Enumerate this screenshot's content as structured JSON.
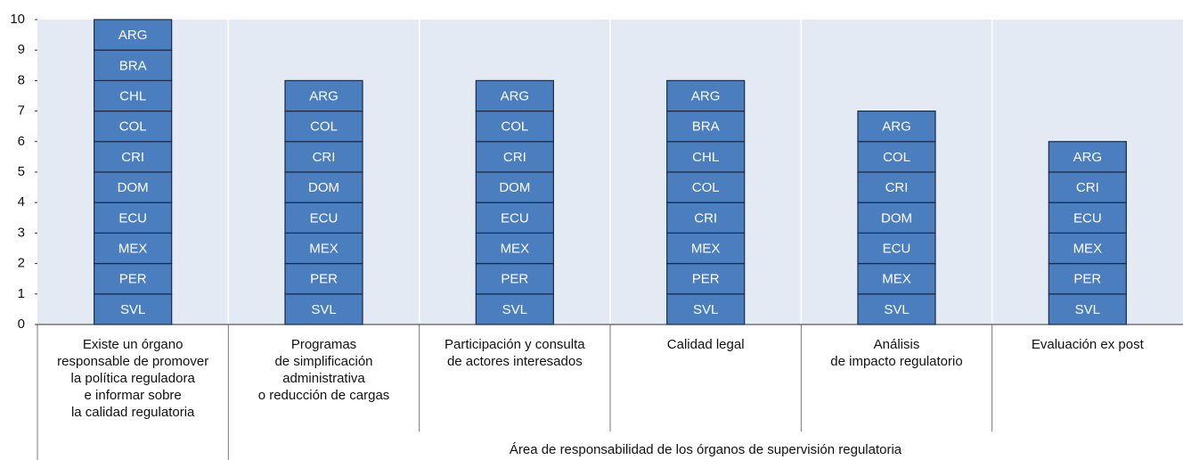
{
  "chart_data": {
    "type": "stacked-blocks",
    "xlabel": "Área de responsabilidad de los órganos de supervisión regulatoria",
    "ylim": [
      0,
      10
    ],
    "yticks": [
      0,
      1,
      2,
      3,
      4,
      5,
      6,
      7,
      8,
      9,
      10
    ],
    "color": "#4a7ebf",
    "categories": [
      {
        "lines": [
          "Existe un órgano",
          "responsable de promover",
          "la política reguladora",
          "e informar sobre",
          "la calidad regulatoria"
        ],
        "blocks": [
          {
            "label": "SVL",
            "value": 1
          },
          {
            "label": "PER",
            "value": 1
          },
          {
            "label": "MEX",
            "value": 1
          },
          {
            "label": "ECU",
            "value": 1
          },
          {
            "label": "DOM",
            "value": 1
          },
          {
            "label": "CRI",
            "value": 1
          },
          {
            "label": "COL",
            "value": 1
          },
          {
            "label": "CHL",
            "value": 1
          },
          {
            "label": "BRA",
            "value": 1
          },
          {
            "label": "ARG",
            "value": 1
          }
        ]
      },
      {
        "lines": [
          "Programas",
          "de simplificación",
          "administrativa",
          "o reducción de cargas"
        ],
        "blocks": [
          {
            "label": "SVL",
            "value": 1
          },
          {
            "label": "PER",
            "value": 1
          },
          {
            "label": "MEX",
            "value": 1
          },
          {
            "label": "ECU",
            "value": 1
          },
          {
            "label": "DOM",
            "value": 1
          },
          {
            "label": "CRI",
            "value": 1
          },
          {
            "label": "COL",
            "value": 1
          },
          {
            "label": "ARG",
            "value": 1
          }
        ]
      },
      {
        "lines": [
          "Participación y consulta",
          "de actores interesados"
        ],
        "blocks": [
          {
            "label": "SVL",
            "value": 1
          },
          {
            "label": "PER",
            "value": 1
          },
          {
            "label": "MEX",
            "value": 1
          },
          {
            "label": "ECU",
            "value": 1
          },
          {
            "label": "DOM",
            "value": 1
          },
          {
            "label": "CRI",
            "value": 1
          },
          {
            "label": "COL",
            "value": 1
          },
          {
            "label": "ARG",
            "value": 1
          }
        ]
      },
      {
        "lines": [
          "Calidad legal"
        ],
        "blocks": [
          {
            "label": "SVL",
            "value": 1
          },
          {
            "label": "PER",
            "value": 1
          },
          {
            "label": "MEX",
            "value": 1
          },
          {
            "label": "CRI",
            "value": 1
          },
          {
            "label": "COL",
            "value": 1
          },
          {
            "label": "CHL",
            "value": 1
          },
          {
            "label": "BRA",
            "value": 1
          },
          {
            "label": "ARG",
            "value": 1
          }
        ]
      },
      {
        "lines": [
          "Análisis",
          "de impacto regulatorio"
        ],
        "blocks": [
          {
            "label": "SVL",
            "value": 1
          },
          {
            "label": "MEX",
            "value": 1
          },
          {
            "label": "ECU",
            "value": 1
          },
          {
            "label": "DOM",
            "value": 1
          },
          {
            "label": "CRI",
            "value": 1
          },
          {
            "label": "COL",
            "value": 1
          },
          {
            "label": "ARG",
            "value": 1
          }
        ]
      },
      {
        "lines": [
          "Evaluación ex post"
        ],
        "blocks": [
          {
            "label": "SVL",
            "value": 1
          },
          {
            "label": "PER",
            "value": 1
          },
          {
            "label": "MEX",
            "value": 1
          },
          {
            "label": "ECU",
            "value": 1
          },
          {
            "label": "CRI",
            "value": 1
          },
          {
            "label": "ARG",
            "value": 1
          }
        ]
      }
    ]
  }
}
